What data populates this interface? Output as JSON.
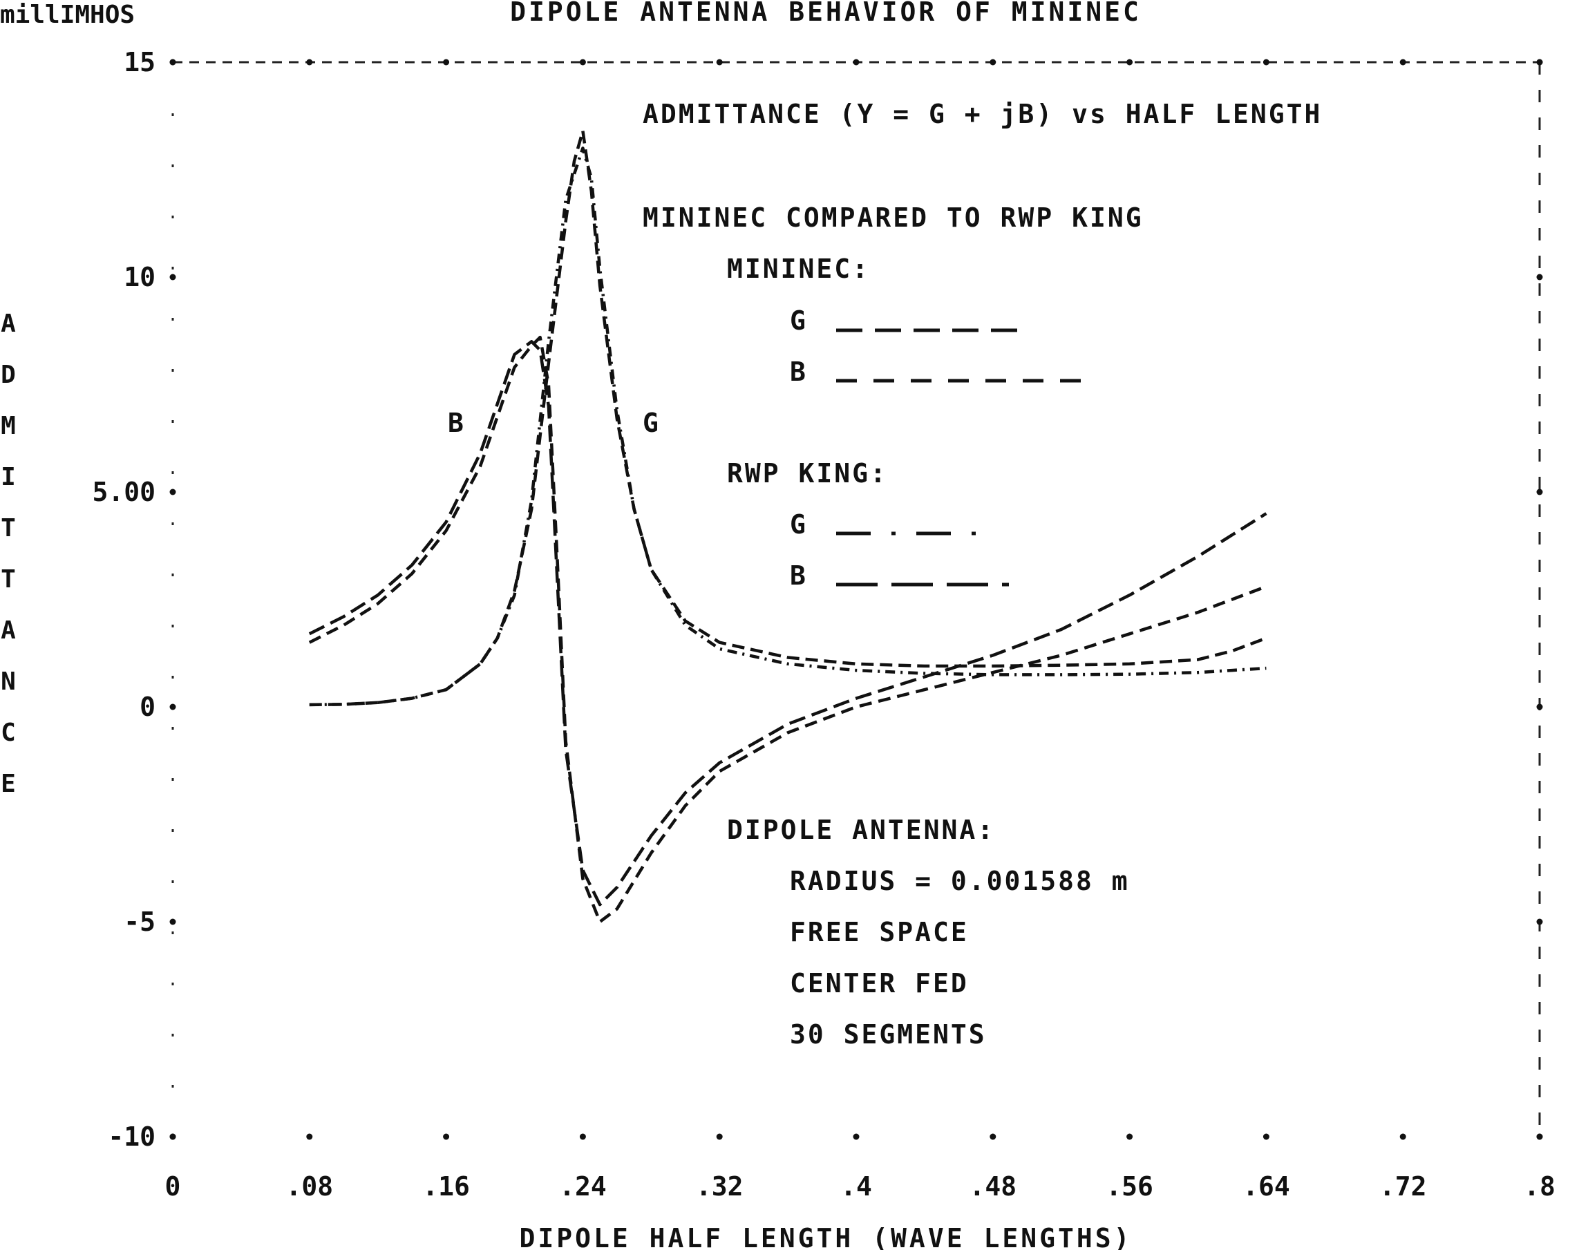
{
  "chart_data": {
    "type": "line",
    "title": "DIPOLE ANTENNA BEHAVIOR OF MININEC",
    "ylabel_units": "millIMHOS",
    "ylabel": "ADMITTANCE",
    "xlabel": "DIPOLE HALF LENGTH (WAVE LENGTHS)",
    "xlim": [
      0,
      0.8
    ],
    "ylim": [
      -10,
      15
    ],
    "x_ticks": [
      {
        "value": 0,
        "label": "0"
      },
      {
        "value": 0.08,
        "label": ".08"
      },
      {
        "value": 0.16,
        "label": ".16"
      },
      {
        "value": 0.24,
        "label": ".24"
      },
      {
        "value": 0.32,
        "label": ".32"
      },
      {
        "value": 0.4,
        "label": ".4"
      },
      {
        "value": 0.48,
        "label": ".48"
      },
      {
        "value": 0.56,
        "label": ".56"
      },
      {
        "value": 0.64,
        "label": ".64"
      },
      {
        "value": 0.72,
        "label": ".72"
      },
      {
        "value": 0.8,
        "label": ".8"
      }
    ],
    "y_ticks": [
      {
        "value": 15,
        "label": "15"
      },
      {
        "value": 10,
        "label": "10"
      },
      {
        "value": 5,
        "label": "5.00"
      },
      {
        "value": 0,
        "label": "0"
      },
      {
        "value": -5,
        "label": "-5"
      },
      {
        "value": -10,
        "label": "-10"
      }
    ],
    "annotations": {
      "heading": "ADMITTANCE (Y = G + jB) vs HALF LENGTH",
      "compare": "MININEC COMPARED TO RWP KING",
      "mininec_header": "MININEC:",
      "king_header": "RWP KING:",
      "g_label": "G",
      "b_label": "B",
      "curve_b": "B",
      "curve_g": "G",
      "dipole_header": "DIPOLE ANTENNA:",
      "radius": "RADIUS = 0.001588 m",
      "space": "FREE SPACE",
      "fed": "CENTER FED",
      "segments": "30 SEGMENTS"
    },
    "series": [
      {
        "name": "G",
        "group": "MININEC",
        "dash": "18,9",
        "x": [
          0.08,
          0.1,
          0.12,
          0.14,
          0.16,
          0.18,
          0.19,
          0.2,
          0.21,
          0.22,
          0.23,
          0.235,
          0.24,
          0.245,
          0.25,
          0.26,
          0.27,
          0.28,
          0.3,
          0.32,
          0.36,
          0.4,
          0.44,
          0.48,
          0.52,
          0.56,
          0.6,
          0.62,
          0.64
        ],
        "y": [
          0.05,
          0.06,
          0.1,
          0.2,
          0.4,
          1.0,
          1.6,
          2.7,
          4.6,
          8.0,
          11.3,
          12.7,
          13.4,
          12.0,
          9.8,
          6.7,
          4.6,
          3.2,
          2.0,
          1.5,
          1.15,
          1.0,
          0.95,
          0.95,
          0.97,
          1.0,
          1.1,
          1.3,
          1.6
        ]
      },
      {
        "name": "B",
        "group": "MININEC",
        "dash": "24,10",
        "x": [
          0.08,
          0.1,
          0.12,
          0.14,
          0.16,
          0.18,
          0.2,
          0.21,
          0.215,
          0.22,
          0.225,
          0.23,
          0.24,
          0.25,
          0.26,
          0.28,
          0.3,
          0.32,
          0.36,
          0.4,
          0.44,
          0.48,
          0.52,
          0.56,
          0.6,
          0.64
        ],
        "y": [
          1.7,
          2.1,
          2.6,
          3.3,
          4.3,
          5.9,
          8.2,
          8.5,
          8.3,
          7.0,
          3.0,
          -1.0,
          -3.8,
          -4.6,
          -4.2,
          -3.0,
          -2.0,
          -1.3,
          -0.4,
          0.2,
          0.7,
          1.2,
          1.8,
          2.6,
          3.5,
          4.5
        ]
      },
      {
        "name": "G",
        "group": "RWP KING",
        "dash": "14,8,3,8",
        "x": [
          0.08,
          0.1,
          0.12,
          0.14,
          0.16,
          0.18,
          0.19,
          0.2,
          0.21,
          0.22,
          0.23,
          0.24,
          0.245,
          0.25,
          0.26,
          0.27,
          0.28,
          0.3,
          0.32,
          0.36,
          0.4,
          0.44,
          0.48,
          0.52,
          0.56,
          0.6,
          0.62,
          0.64
        ],
        "y": [
          0.05,
          0.06,
          0.1,
          0.2,
          0.4,
          1.0,
          1.6,
          2.6,
          4.8,
          8.5,
          11.8,
          13.0,
          12.3,
          10.2,
          6.9,
          4.6,
          3.2,
          1.9,
          1.35,
          1.0,
          0.85,
          0.78,
          0.75,
          0.75,
          0.76,
          0.8,
          0.85,
          0.9
        ]
      },
      {
        "name": "B",
        "group": "RWP KING",
        "dash": "18,10",
        "x": [
          0.08,
          0.1,
          0.12,
          0.14,
          0.16,
          0.18,
          0.2,
          0.21,
          0.215,
          0.22,
          0.225,
          0.23,
          0.24,
          0.25,
          0.26,
          0.28,
          0.3,
          0.32,
          0.36,
          0.4,
          0.44,
          0.48,
          0.52,
          0.56,
          0.6,
          0.64
        ],
        "y": [
          1.5,
          1.9,
          2.4,
          3.1,
          4.1,
          5.6,
          7.9,
          8.4,
          8.6,
          7.5,
          3.5,
          -0.8,
          -4.0,
          -5.0,
          -4.7,
          -3.4,
          -2.3,
          -1.5,
          -0.6,
          0.0,
          0.4,
          0.8,
          1.2,
          1.7,
          2.2,
          2.8
        ]
      }
    ]
  }
}
